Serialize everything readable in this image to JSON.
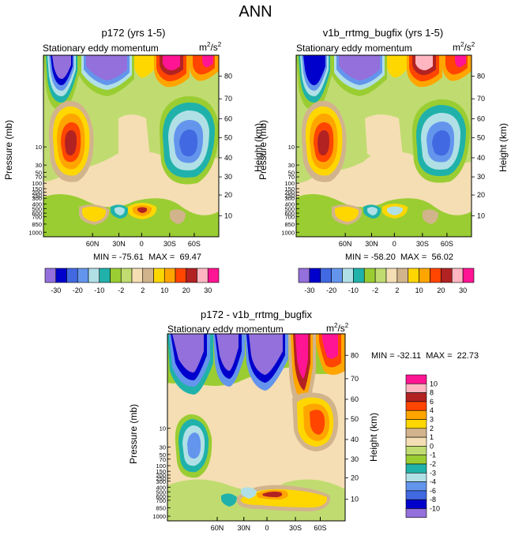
{
  "figure_title": "ANN",
  "colors": {
    "neg30": "#9370db",
    "neg20_dark": "#0000cd",
    "neg20": "#4169e1",
    "neg10_mid": "#6495ed",
    "neg10": "#b0e0e6",
    "neg5": "#20b2aa",
    "neg2": "#9acd32",
    "neg1": "#c0dc70",
    "zero": "#f5deb3",
    "pos2": "#d2b48c",
    "pos5": "#ffd700",
    "pos10": "#ffa500",
    "pos15": "#ff4500",
    "pos20": "#b22222",
    "pos30": "#ffb6c1",
    "pos40": "#ff1493"
  },
  "chart_data": [
    {
      "type": "heatmap",
      "title": "p172 (yrs 1-5)",
      "field_label": "Stationary eddy momentum",
      "units_base": "m",
      "units_exp": "2",
      "units_mid": "/s",
      "units_exp2": "2",
      "xlabel": "",
      "ylabel": "Pressure (mb)",
      "ylabel_right": "Height (km)",
      "x_ticks": [
        "60N",
        "30N",
        "0",
        "30S",
        "60S"
      ],
      "y_ticks_left": [
        "10",
        "30",
        "50",
        "70",
        "100",
        "150",
        "200",
        "250",
        "300",
        "400",
        "500",
        "600",
        "700",
        "850",
        "1000"
      ],
      "y_ticks_right": [
        "80",
        "70",
        "60",
        "50",
        "40",
        "30",
        "20",
        "10"
      ],
      "min_label": "MIN = -75.61",
      "max_label": "MAX =  69.47",
      "min": -75.61,
      "max": 69.47,
      "colorbar_labels": [
        "-30",
        "-20",
        "-10",
        "-2",
        "2",
        "10",
        "20",
        "30"
      ]
    },
    {
      "type": "heatmap",
      "title": "v1b_rrtmg_bugfix (yrs 1-5)",
      "field_label": "Stationary eddy momentum",
      "units_base": "m",
      "units_exp": "2",
      "units_mid": "/s",
      "units_exp2": "2",
      "xlabel": "",
      "ylabel": "Pressure (mb)",
      "ylabel_right": "Height (km)",
      "x_ticks": [
        "60N",
        "30N",
        "0",
        "30S",
        "60S"
      ],
      "y_ticks_left": [
        "10",
        "30",
        "50",
        "70",
        "100",
        "150",
        "200",
        "250",
        "300",
        "400",
        "500",
        "600",
        "700",
        "850",
        "1000"
      ],
      "y_ticks_right": [
        "80",
        "70",
        "60",
        "50",
        "40",
        "30",
        "20",
        "10"
      ],
      "min_label": "MIN = -58.20",
      "max_label": "MAX =  56.02",
      "min": -58.2,
      "max": 56.02,
      "colorbar_labels": [
        "-30",
        "-20",
        "-10",
        "-2",
        "2",
        "10",
        "20",
        "30"
      ]
    },
    {
      "type": "heatmap",
      "title": "p172 - v1b_rrtmg_bugfix",
      "field_label": "Stationary eddy momentum",
      "units_base": "m",
      "units_exp": "2",
      "units_mid": "/s",
      "units_exp2": "2",
      "xlabel": "",
      "ylabel": "Pressure (mb)",
      "ylabel_right": "Height (km)",
      "x_ticks": [
        "60N",
        "30N",
        "0",
        "30S",
        "60S"
      ],
      "y_ticks_left": [
        "10",
        "30",
        "50",
        "70",
        "100",
        "150",
        "200",
        "250",
        "300",
        "400",
        "500",
        "600",
        "700",
        "850",
        "1000"
      ],
      "y_ticks_right": [
        "80",
        "70",
        "60",
        "50",
        "40",
        "30",
        "20",
        "10"
      ],
      "min_label": "MIN = -32.11",
      "max_label": "MAX =  22.73",
      "min": -32.11,
      "max": 22.73,
      "colorbar_labels": [
        "10",
        "8",
        "6",
        "4",
        "3",
        "2",
        "1",
        "0",
        "-1",
        "-2",
        "-3",
        "-4",
        "-6",
        "-8",
        "-10"
      ]
    }
  ]
}
